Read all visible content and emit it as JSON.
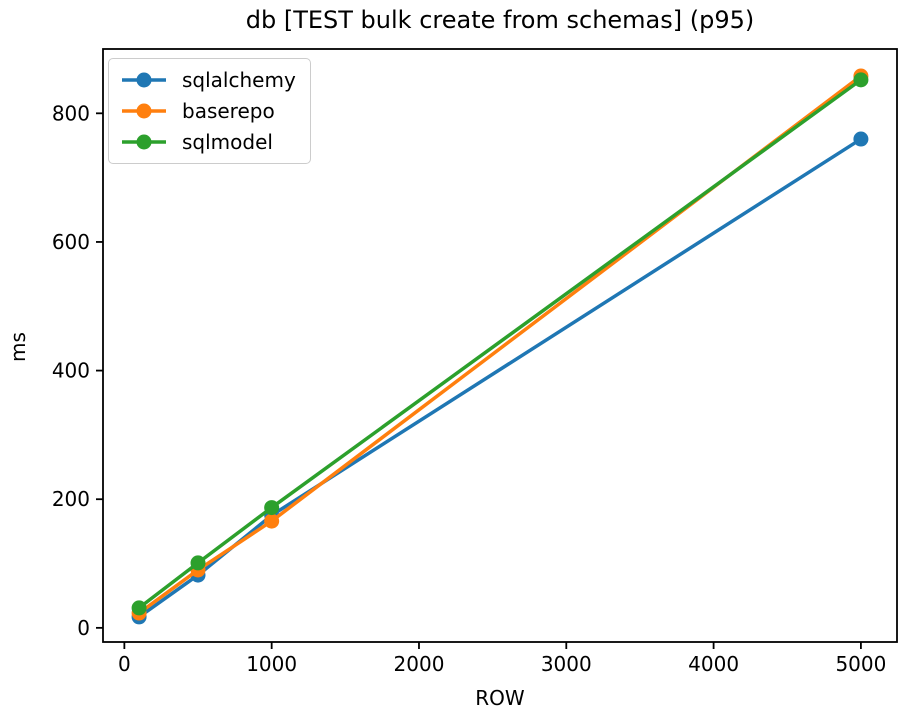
{
  "chart_data": {
    "type": "line",
    "title": "db [TEST bulk create from schemas] (p95)",
    "xlabel": "ROW",
    "ylabel": "ms",
    "x": [
      100,
      500,
      1000,
      5000
    ],
    "series": [
      {
        "name": "sqlalchemy",
        "color": "#1f77b4",
        "values": [
          17,
          82,
          175,
          760
        ]
      },
      {
        "name": "baserepo",
        "color": "#ff7f0e",
        "values": [
          23,
          90,
          166,
          858
        ]
      },
      {
        "name": "sqlmodel",
        "color": "#2ca02c",
        "values": [
          31,
          101,
          187,
          852
        ]
      }
    ],
    "xticks": [
      0,
      1000,
      2000,
      3000,
      4000,
      5000
    ],
    "yticks": [
      0,
      200,
      400,
      600,
      800
    ],
    "xlim": [
      -145,
      5245
    ],
    "ylim": [
      -22,
      900
    ],
    "grid": false,
    "legend_position": "upper left",
    "marker": "o",
    "axis_color": "#000000",
    "background": "#ffffff"
  }
}
